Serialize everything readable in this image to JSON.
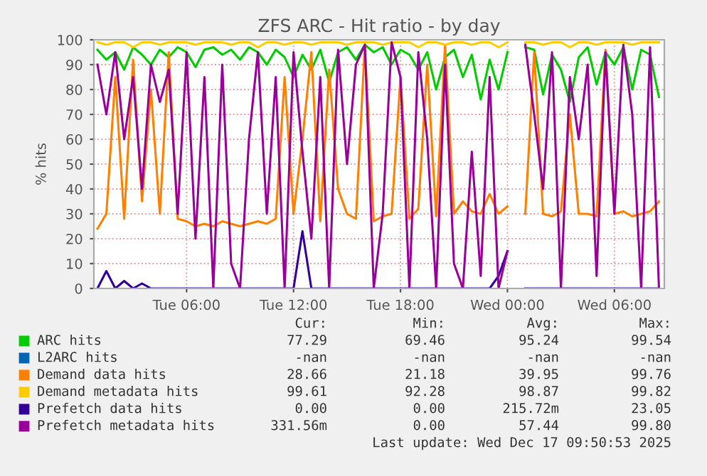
{
  "chart_data": {
    "type": "line",
    "title": "ZFS ARC - Hit ratio - by day",
    "ylabel": "% hits",
    "x": [
      "2025-12-16T01:00",
      "2025-12-16T01:30",
      "2025-12-16T02:00",
      "2025-12-16T02:30",
      "2025-12-16T03:00",
      "2025-12-16T03:30",
      "2025-12-16T04:00",
      "2025-12-16T04:30",
      "2025-12-16T05:00",
      "2025-12-16T05:30",
      "2025-12-16T06:00",
      "2025-12-16T06:30",
      "2025-12-16T07:00",
      "2025-12-16T07:30",
      "2025-12-16T08:00",
      "2025-12-16T08:30",
      "2025-12-16T09:00",
      "2025-12-16T09:30",
      "2025-12-16T10:00",
      "2025-12-16T10:30",
      "2025-12-16T11:00",
      "2025-12-16T11:30",
      "2025-12-16T12:00",
      "2025-12-16T12:30",
      "2025-12-16T13:00",
      "2025-12-16T13:30",
      "2025-12-16T14:00",
      "2025-12-16T14:30",
      "2025-12-16T15:00",
      "2025-12-16T15:30",
      "2025-12-16T16:00",
      "2025-12-16T16:30",
      "2025-12-16T17:00",
      "2025-12-16T17:30",
      "2025-12-16T18:00",
      "2025-12-16T18:30",
      "2025-12-16T19:00",
      "2025-12-16T19:30",
      "2025-12-16T20:00",
      "2025-12-16T20:30",
      "2025-12-16T21:00",
      "2025-12-16T21:30",
      "2025-12-16T22:00",
      "2025-12-16T22:30",
      "2025-12-16T23:00",
      "2025-12-16T23:30",
      "2025-12-17T00:00",
      "2025-12-17T00:30",
      "2025-12-17T01:00",
      "2025-12-17T01:30",
      "2025-12-17T02:00",
      "2025-12-17T02:30",
      "2025-12-17T03:00",
      "2025-12-17T03:30",
      "2025-12-17T04:00",
      "2025-12-17T04:30",
      "2025-12-17T05:00",
      "2025-12-17T05:30",
      "2025-12-17T06:00",
      "2025-12-17T06:30",
      "2025-12-17T07:00",
      "2025-12-17T07:30",
      "2025-12-17T08:00",
      "2025-12-17T08:30"
    ],
    "series": [
      {
        "name": "ARC hits",
        "color": "#00cc00",
        "values": [
          96,
          92,
          95,
          88,
          97,
          94,
          90,
          96,
          93,
          97,
          95,
          89,
          96,
          97,
          94,
          96,
          92,
          97,
          95,
          90,
          96,
          93,
          85,
          94,
          88,
          96,
          83,
          95,
          97,
          92,
          98,
          95,
          97,
          90,
          96,
          94,
          88,
          95,
          80,
          93,
          96,
          85,
          94,
          76,
          92,
          80,
          95,
          null,
          97,
          96,
          78,
          94,
          88,
          75,
          93,
          97,
          82,
          95,
          90,
          97,
          80,
          96,
          94,
          77
        ]
      },
      {
        "name": "L2ARC hits",
        "color": "#0066b3",
        "values": [
          null,
          null,
          null,
          null,
          null,
          null,
          null,
          null,
          null,
          null,
          null,
          null,
          null,
          null,
          null,
          null,
          null,
          null,
          null,
          null,
          null,
          null,
          null,
          null,
          null,
          null,
          null,
          null,
          null,
          null,
          null,
          null,
          null,
          null,
          null,
          null,
          null,
          null,
          null,
          null,
          null,
          null,
          null,
          null,
          null,
          null,
          null,
          null,
          null,
          null,
          null,
          null,
          null,
          null,
          null,
          null,
          null,
          null,
          null,
          null,
          null,
          null,
          null,
          null
        ]
      },
      {
        "name": "Demand data hits",
        "color": "#ff8000",
        "values": [
          24,
          30,
          85,
          28,
          92,
          35,
          80,
          30,
          95,
          28,
          27,
          25,
          26,
          25,
          27,
          26,
          25,
          26,
          27,
          26,
          28,
          85,
          30,
          60,
          95,
          27,
          88,
          40,
          30,
          28,
          98,
          27,
          29,
          30,
          85,
          28,
          32,
          90,
          29,
          98,
          30,
          35,
          31,
          30,
          38,
          30,
          33,
          null,
          30,
          95,
          30,
          29,
          31,
          70,
          30,
          30,
          29,
          96,
          30,
          31,
          29,
          30,
          31,
          35
        ]
      },
      {
        "name": "Demand metadata hits",
        "color": "#ffcc00",
        "values": [
          99,
          98,
          99,
          99,
          97,
          99,
          99,
          98,
          99,
          99,
          99,
          98,
          99,
          99,
          99,
          98,
          99,
          99,
          97,
          99,
          99,
          98,
          99,
          99,
          98,
          99,
          99,
          99,
          98,
          99,
          99,
          99,
          98,
          99,
          99,
          99,
          97,
          99,
          99,
          98,
          99,
          99,
          98,
          99,
          99,
          97,
          99,
          null,
          99,
          99,
          98,
          99,
          99,
          97,
          99,
          99,
          98,
          99,
          99,
          99,
          98,
          99,
          99,
          99
        ]
      },
      {
        "name": "Prefetch data hits",
        "color": "#330099",
        "values": [
          0,
          7,
          0,
          3,
          0,
          2,
          0,
          0,
          0,
          0,
          0,
          0,
          0,
          0,
          0,
          0,
          0,
          0,
          0,
          0,
          0,
          0,
          0,
          23,
          0,
          0,
          0,
          0,
          0,
          0,
          0,
          0,
          0,
          0,
          0,
          0,
          0,
          0,
          0,
          0,
          0,
          0,
          0,
          0,
          0,
          5,
          15,
          null,
          0,
          0,
          0,
          0,
          0,
          0,
          0,
          0,
          0,
          0,
          0,
          0,
          0,
          0,
          0,
          0
        ]
      },
      {
        "name": "Prefetch metadata hits",
        "color": "#990099",
        "values": [
          90,
          70,
          95,
          60,
          85,
          40,
          90,
          75,
          88,
          30,
          95,
          20,
          85,
          0,
          90,
          10,
          0,
          60,
          95,
          30,
          85,
          0,
          95,
          55,
          20,
          85,
          0,
          96,
          50,
          90,
          98,
          0,
          30,
          99,
          85,
          0,
          95,
          60,
          0,
          90,
          10,
          0,
          55,
          5,
          85,
          0,
          15,
          null,
          98,
          70,
          40,
          95,
          0,
          85,
          60,
          90,
          5,
          95,
          30,
          98,
          70,
          0,
          97,
          0
        ]
      }
    ],
    "xlim": [
      "2025-12-16T00:48",
      "2025-12-17T08:48"
    ],
    "xticks": [
      {
        "value": "2025-12-16T06:00",
        "label": "Tue 06:00"
      },
      {
        "value": "2025-12-16T12:00",
        "label": "Tue 12:00"
      },
      {
        "value": "2025-12-16T18:00",
        "label": "Tue 18:00"
      },
      {
        "value": "2025-12-17T00:00",
        "label": "Wed 00:00"
      },
      {
        "value": "2025-12-17T06:00",
        "label": "Wed 06:00"
      }
    ],
    "ylim": [
      0,
      100
    ],
    "yticks": [
      0,
      10,
      20,
      30,
      40,
      50,
      60,
      70,
      80,
      90,
      100
    ],
    "grid": true,
    "legend": "bottom",
    "marker": "none",
    "line_style": "solid",
    "annotations": [
      "Cur:",
      "Min:",
      "Avg:",
      "Max:",
      "77.29",
      "69.46",
      "95.24",
      "99.54",
      "-nan",
      "-nan",
      "-nan",
      "-nan",
      "28.66",
      "21.18",
      "39.95",
      "99.76",
      "99.61",
      "92.28",
      "98.87",
      "99.82",
      "0.00",
      "0.00",
      "215.72m",
      "23.05",
      "331.56m",
      "0.00",
      "57.44",
      "99.80",
      "Last update: Wed Dec 17 09:50:53 2025"
    ]
  }
}
